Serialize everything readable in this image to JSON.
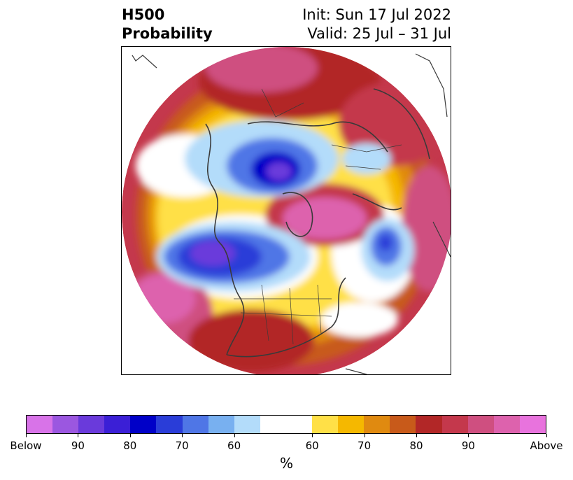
{
  "title": {
    "left_line1": "H500",
    "left_line2": "Probability",
    "right_line1": "Init: Sun 17 Jul 2022",
    "right_line2": "Valid: 25 Jul – 31 Jul"
  },
  "colorbar": {
    "colors": [
      "#d873e8",
      "#9b57e0",
      "#6a3adb",
      "#3b1fd6",
      "#0000c8",
      "#2a3dd8",
      "#4f76e6",
      "#78b0f0",
      "#b3dcfa",
      "#ffffff",
      "#ffffff",
      "#ffe047",
      "#f5b800",
      "#e08a10",
      "#c85a1a",
      "#b22727",
      "#c4384c",
      "#cf4f80",
      "#dd62ad",
      "#e873dd"
    ],
    "ticks": [
      "Below",
      "90",
      "80",
      "70",
      "60",
      "60",
      "70",
      "80",
      "90",
      "Above"
    ],
    "unit": "%"
  },
  "map": {
    "projection": "polar-stereographic",
    "background_color": "#c4384c",
    "border_color": "#3a3a3a",
    "features": [
      {
        "name": "pink-arctic",
        "color": "#cf4f80"
      },
      {
        "name": "above-hudson",
        "color": "#dd62ad"
      },
      {
        "name": "below-canada",
        "color": "#4f76e6"
      },
      {
        "name": "below-pacific",
        "color": "#2a3dd8"
      },
      {
        "name": "below-atlantic",
        "color": "#4f76e6"
      },
      {
        "name": "above-pacific",
        "color": "#dd62ad"
      }
    ]
  }
}
